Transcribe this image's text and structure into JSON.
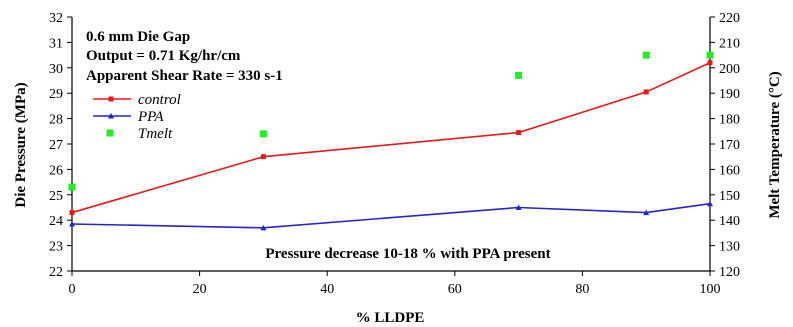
{
  "chart_data": {
    "type": "line",
    "x": [
      0,
      30,
      70,
      90,
      100
    ],
    "xlim": [
      0,
      100
    ],
    "x_ticks": [
      "0",
      "20",
      "40",
      "60",
      "80",
      "100"
    ],
    "xlabel": "% LLDPE",
    "ylabel_left": "Die Pressure (MPa)",
    "ylim_left": [
      22,
      32
    ],
    "y_ticks_left": [
      "22",
      "23",
      "24",
      "25",
      "26",
      "27",
      "28",
      "29",
      "30",
      "31",
      "32"
    ],
    "ylabel_right": "Melt Temperature (°C)",
    "ylim_right": [
      120,
      220
    ],
    "y_ticks_right": [
      "120",
      "130",
      "140",
      "150",
      "160",
      "170",
      "180",
      "190",
      "200",
      "210",
      "220"
    ],
    "series": [
      {
        "name": "control",
        "axis": "left",
        "marker": "square",
        "color": "#e3191c",
        "values": [
          24.3,
          26.5,
          27.45,
          29.05,
          30.2
        ]
      },
      {
        "name": "PPA",
        "axis": "left",
        "marker": "triangle",
        "color": "#2525c8",
        "values": [
          23.85,
          23.7,
          24.5,
          24.3,
          24.65
        ]
      },
      {
        "name": "Tmelt",
        "axis": "right",
        "marker": "square",
        "color": "#22ee22",
        "line": false,
        "values": [
          153,
          174,
          197,
          205,
          205
        ]
      }
    ],
    "annotations": [
      "0.6 mm Die Gap",
      "Output = 0.71 Kg/hr/cm",
      "Apparent Shear Rate = 330 s-1"
    ],
    "footnote": "Pressure decrease 10-18 % with PPA present",
    "legend_position": "top-left",
    "grid": false
  }
}
